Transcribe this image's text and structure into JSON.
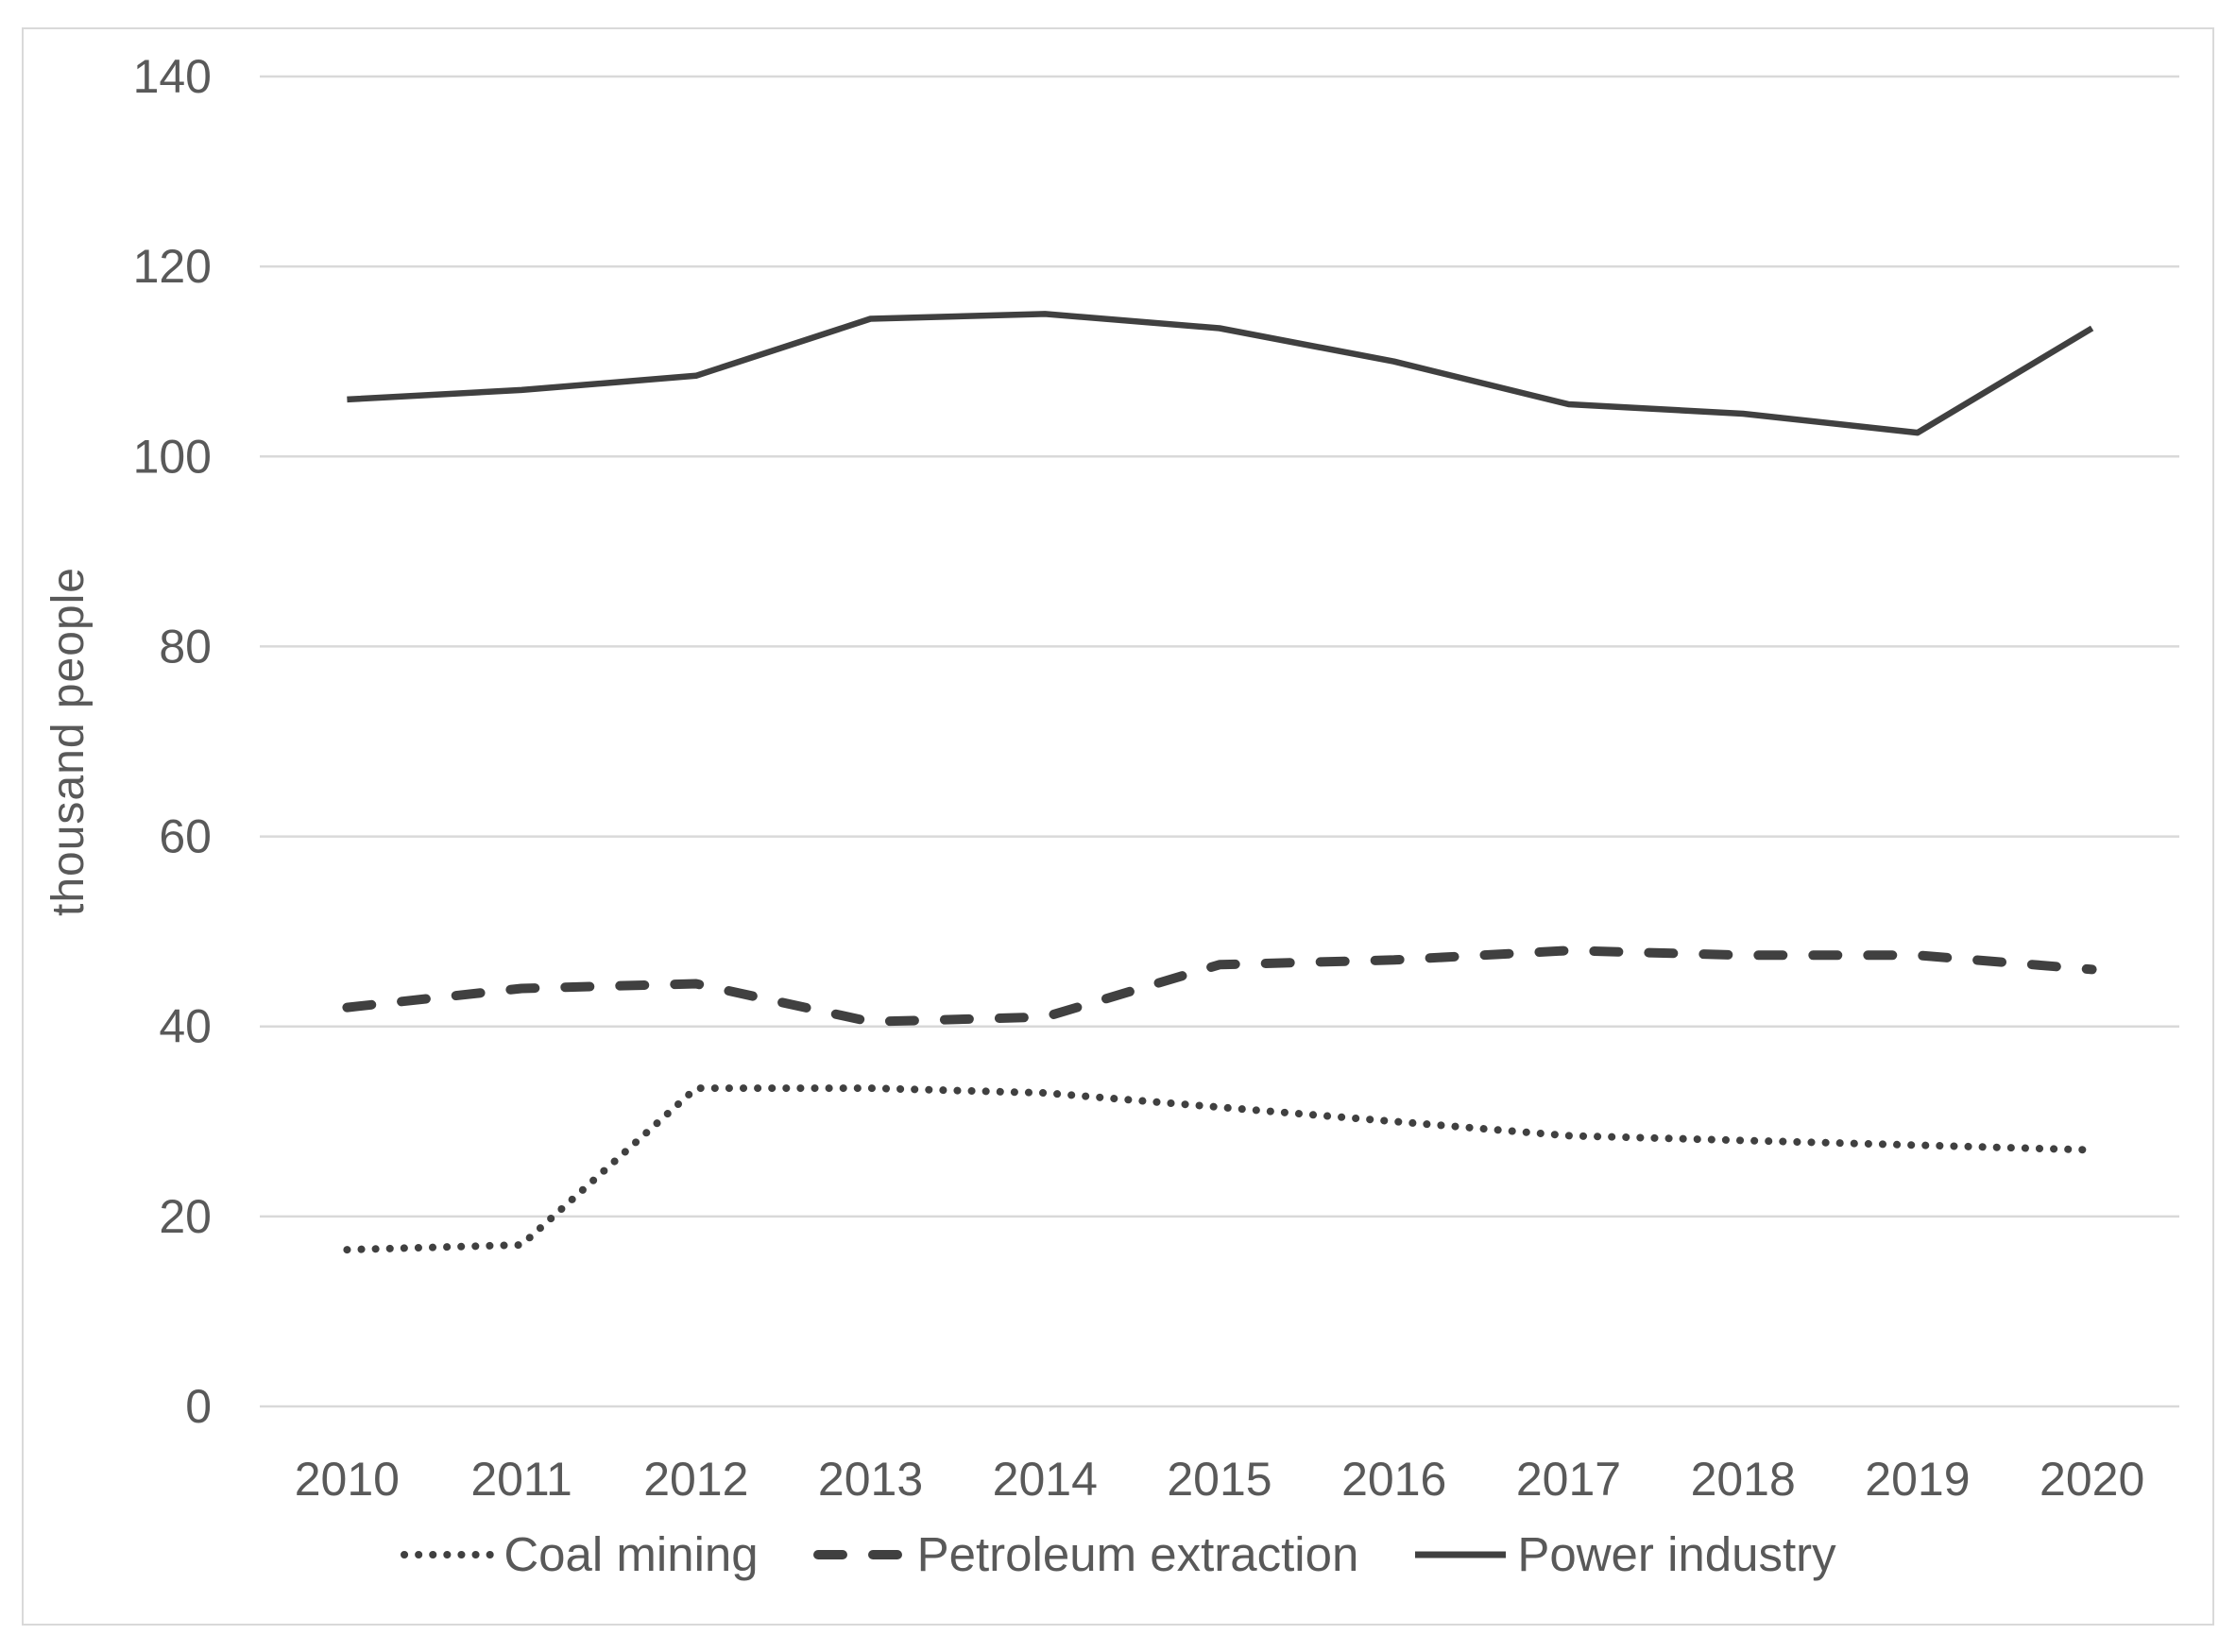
{
  "chart_data": {
    "type": "line",
    "title": "",
    "categories": [
      "2010",
      "2011",
      "2012",
      "2013",
      "2014",
      "2015",
      "2016",
      "2017",
      "2018",
      "2019",
      "2020"
    ],
    "series": [
      {
        "name": "Coal mining",
        "style": "dotted",
        "values": [
          16.5,
          17,
          33.5,
          33.5,
          33,
          31.5,
          30,
          28.5,
          28,
          27.5,
          27
        ]
      },
      {
        "name": "Petroleum extraction",
        "style": "dashed",
        "values": [
          42,
          44,
          44.5,
          40.5,
          41,
          46.5,
          47,
          48,
          47.5,
          47.5,
          46
        ]
      },
      {
        "name": "Power industry",
        "style": "solid",
        "values": [
          106,
          107,
          108.5,
          114.5,
          115,
          113.5,
          110,
          105.5,
          104.5,
          102.5,
          113.5
        ]
      }
    ],
    "xlabel": "",
    "ylabel": "thousand people",
    "ylim": [
      0,
      140
    ],
    "yticks": [
      0,
      20,
      40,
      60,
      80,
      100,
      120,
      140
    ],
    "grid": "horizontal",
    "legend_position": "bottom",
    "colors": {
      "line": "#404040",
      "grid": "#d9d9d9",
      "frame": "#d9d9d9",
      "text": "#595959",
      "background": "#ffffff"
    }
  }
}
